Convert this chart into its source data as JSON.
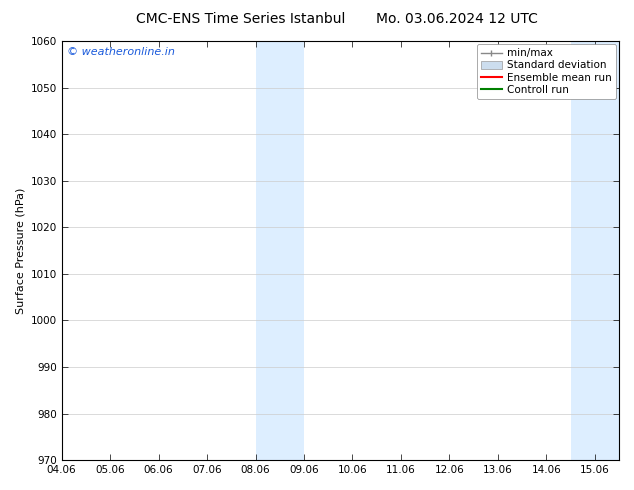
{
  "title_left": "CMC-ENS Time Series Istanbul",
  "title_right": "Mo. 03.06.2024 12 UTC",
  "ylabel": "Surface Pressure (hPa)",
  "ylim": [
    970,
    1060
  ],
  "yticks": [
    970,
    980,
    990,
    1000,
    1010,
    1020,
    1030,
    1040,
    1050,
    1060
  ],
  "xlim_start": 0,
  "xlim_end": 11.5,
  "xtick_labels": [
    "04.06",
    "05.06",
    "06.06",
    "07.06",
    "08.06",
    "09.06",
    "10.06",
    "11.06",
    "12.06",
    "13.06",
    "14.06",
    "15.06"
  ],
  "xtick_positions": [
    0,
    1,
    2,
    3,
    4,
    5,
    6,
    7,
    8,
    9,
    10,
    11
  ],
  "shaded_regions": [
    {
      "xmin": 4.0,
      "xmax": 4.5,
      "color": "#ddeeff"
    },
    {
      "xmin": 4.5,
      "xmax": 5.0,
      "color": "#ddeeff"
    },
    {
      "xmin": 10.5,
      "xmax": 11.0,
      "color": "#ddeeff"
    },
    {
      "xmin": 11.0,
      "xmax": 11.5,
      "color": "#ddeeff"
    }
  ],
  "background_color": "#ffffff",
  "plot_bg_color": "#ffffff",
  "watermark_text": "© weatheronline.in",
  "watermark_color": "#1a5adb",
  "legend_items": [
    {
      "label": "min/max",
      "color": "#888888",
      "type": "errorbar"
    },
    {
      "label": "Standard deviation",
      "color": "#ccddee",
      "type": "band"
    },
    {
      "label": "Ensemble mean run",
      "color": "#ff0000",
      "type": "line"
    },
    {
      "label": "Controll run",
      "color": "#008000",
      "type": "line"
    }
  ],
  "title_fontsize": 10,
  "axis_label_fontsize": 8,
  "tick_fontsize": 7.5,
  "legend_fontsize": 7.5,
  "watermark_fontsize": 8
}
